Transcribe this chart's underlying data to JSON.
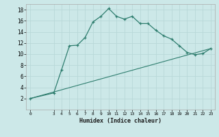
{
  "xlabel": "Humidex (Indice chaleur)",
  "background_color": "#cce8e8",
  "grid_color": "#b8d8d8",
  "line_color": "#2e7d6e",
  "line1_x": [
    0,
    3,
    4,
    5,
    6,
    7,
    8,
    9,
    10,
    11,
    12,
    13,
    14,
    15,
    16,
    17,
    18,
    19,
    20,
    21,
    22,
    23
  ],
  "line1_y": [
    2,
    3,
    7.2,
    11.5,
    11.6,
    13.0,
    15.8,
    16.8,
    18.2,
    16.8,
    16.3,
    16.8,
    15.5,
    15.5,
    14.3,
    13.3,
    12.7,
    11.5,
    10.3,
    9.9,
    10.1,
    11.0
  ],
  "line2_x": [
    0,
    23
  ],
  "line2_y": [
    2,
    11.0
  ],
  "xlim": [
    -0.5,
    23.5
  ],
  "ylim": [
    0,
    19
  ],
  "yticks": [
    2,
    4,
    6,
    8,
    10,
    12,
    14,
    16,
    18
  ],
  "xticks": [
    0,
    3,
    4,
    5,
    6,
    7,
    8,
    9,
    10,
    11,
    12,
    13,
    14,
    15,
    16,
    17,
    18,
    19,
    20,
    21,
    22,
    23
  ],
  "xtick_labels": [
    "0",
    "3",
    "4",
    "5",
    "6",
    "7",
    "8",
    "9",
    "10",
    "11",
    "12",
    "13",
    "14",
    "15",
    "16",
    "17",
    "18",
    "19",
    "20",
    "21",
    "22",
    "23"
  ]
}
